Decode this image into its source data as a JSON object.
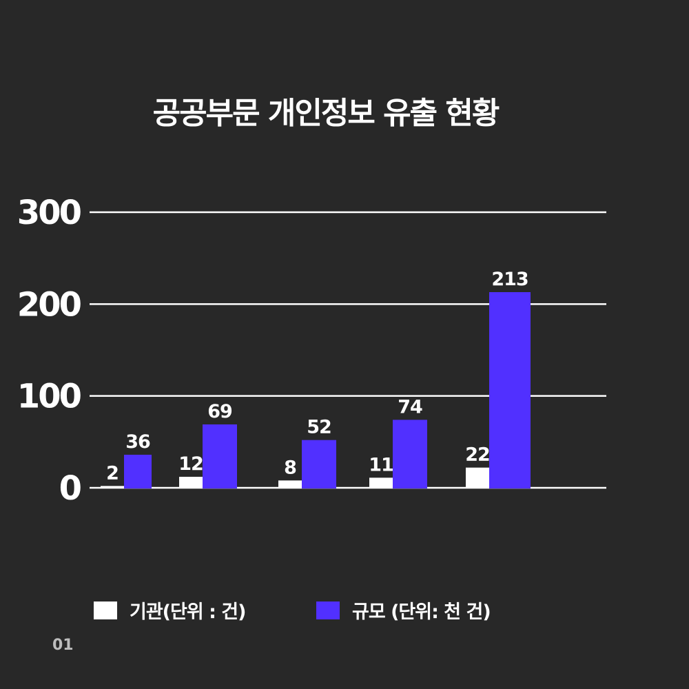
{
  "colors": {
    "background": "#282828",
    "agencies": "#ffffff",
    "scale": "#5130ff",
    "gridline": "#ffffff"
  },
  "page_number": "01",
  "chart_data": {
    "type": "bar",
    "title": "공공부문 개인정보 유출 현황",
    "categories": [
      "",
      "",
      "",
      "",
      ""
    ],
    "series": [
      {
        "name": "기관(단위 : 건)",
        "values": [
          2,
          12,
          8,
          11,
          22
        ]
      },
      {
        "name": "규모 (단위: 천 건)",
        "values": [
          36,
          69,
          52,
          74,
          213
        ]
      }
    ],
    "data_labels": [
      [
        "2",
        "12",
        "8",
        "11",
        "22"
      ],
      [
        "36",
        "69",
        "52",
        "74",
        "213"
      ]
    ],
    "yticks": [
      "0",
      "100",
      "200",
      "300"
    ],
    "ylim": [
      0,
      300
    ],
    "xlabel": "",
    "ylabel": "",
    "grid": true,
    "legend": "bottom"
  }
}
